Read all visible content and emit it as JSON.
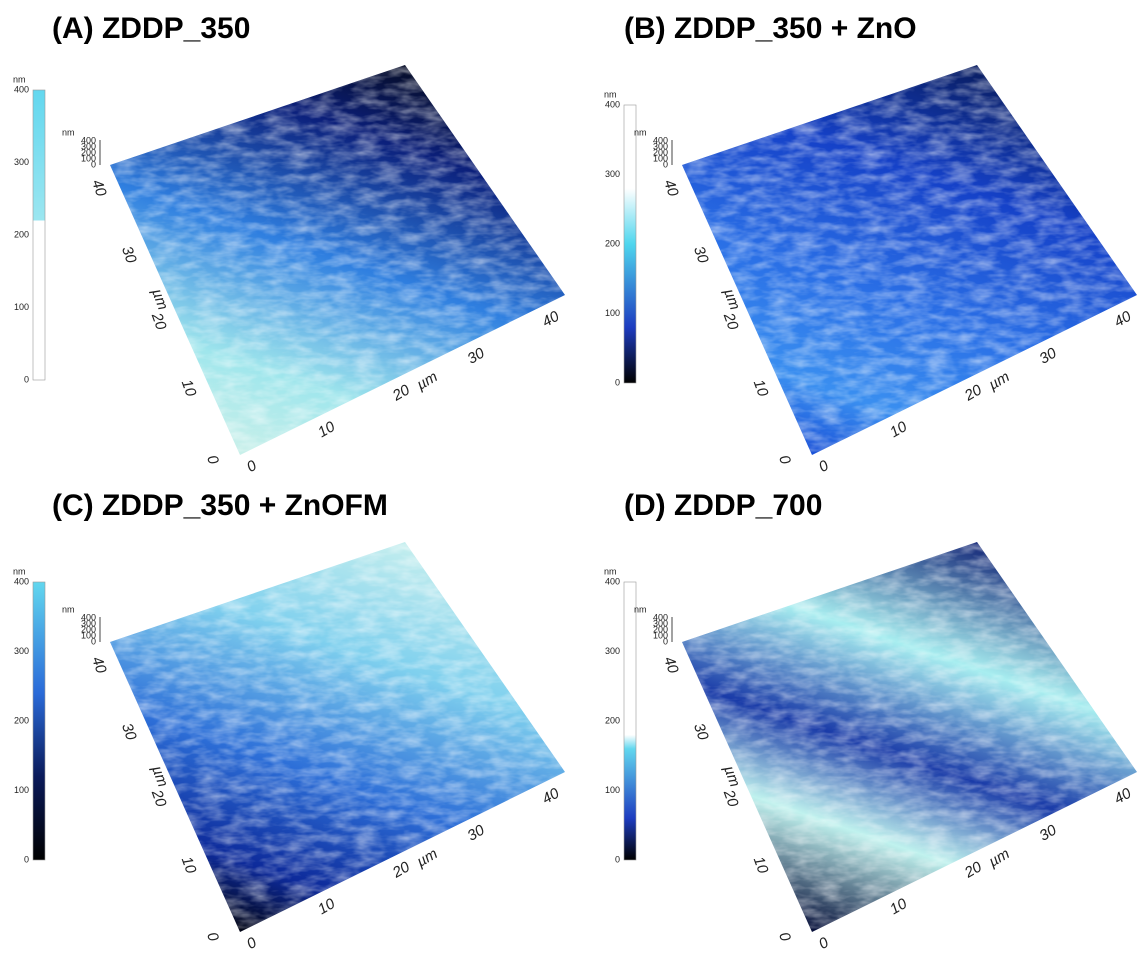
{
  "panels": [
    {
      "title": "(A) ZDDP_350",
      "colorbar": {
        "unit": "nm",
        "ticks": [
          0,
          100,
          200,
          300,
          400
        ]
      },
      "z_axis": {
        "unit": "nm",
        "ticks": [
          400,
          300,
          200,
          100,
          0
        ]
      },
      "y_axis": {
        "unit": "µm",
        "ticks": [
          0,
          10,
          20,
          30,
          40
        ]
      },
      "x_axis": {
        "unit": "µm",
        "ticks": [
          0,
          10,
          20,
          30,
          40
        ]
      }
    },
    {
      "title": "(B) ZDDP_350 + ZnO",
      "colorbar": {
        "unit": "nm",
        "ticks": [
          0,
          100,
          200,
          300,
          400
        ]
      },
      "z_axis": {
        "unit": "nm",
        "ticks": [
          400,
          300,
          200,
          100,
          0
        ]
      },
      "y_axis": {
        "unit": "µm",
        "ticks": [
          0,
          10,
          20,
          30,
          40
        ]
      },
      "x_axis": {
        "unit": "µm",
        "ticks": [
          0,
          10,
          20,
          30,
          40
        ]
      }
    },
    {
      "title": "(C) ZDDP_350 + ZnOFM",
      "colorbar": {
        "unit": "nm",
        "ticks": [
          0,
          100,
          200,
          300,
          400
        ]
      },
      "z_axis": {
        "unit": "nm",
        "ticks": [
          400,
          300,
          200,
          100,
          0
        ]
      },
      "y_axis": {
        "unit": "µm",
        "ticks": [
          0,
          10,
          20,
          30,
          40
        ]
      },
      "x_axis": {
        "unit": "µm",
        "ticks": [
          0,
          10,
          20,
          30,
          40
        ]
      }
    },
    {
      "title": "(D) ZDDP_700",
      "colorbar": {
        "unit": "nm",
        "ticks": [
          0,
          100,
          200,
          300,
          400
        ]
      },
      "z_axis": {
        "unit": "nm",
        "ticks": [
          400,
          300,
          200,
          100,
          0
        ]
      },
      "y_axis": {
        "unit": "µm",
        "ticks": [
          0,
          10,
          20,
          30,
          40
        ]
      },
      "x_axis": {
        "unit": "µm",
        "ticks": [
          0,
          10,
          20,
          30,
          40
        ]
      }
    }
  ]
}
